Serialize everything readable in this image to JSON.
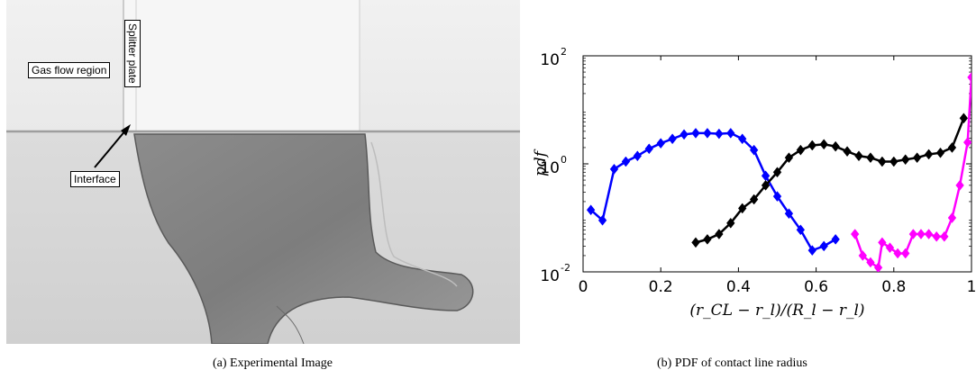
{
  "figure": {
    "panel_a": {
      "labels": {
        "gas_flow_region": "Gas flow region",
        "splitter_plate": "Splitter plate",
        "interface": "Interface"
      },
      "caption": "(a) Experimental Image"
    },
    "panel_b": {
      "caption": "(b) PDF of contact line radius"
    }
  },
  "chart_data": {
    "type": "line",
    "xlabel": "(r_CL − r_l)/(R_l − r_l)",
    "ylabel": "pdf",
    "xlim": [
      0,
      1
    ],
    "ylim": [
      0.01,
      100
    ],
    "yscale": "log",
    "grid": false,
    "legend": "none",
    "x_ticks": [
      "0",
      "0.2",
      "0.4",
      "0.6",
      "0.8",
      "1"
    ],
    "y_ticks": [
      {
        "base": "10",
        "exp": "-2"
      },
      {
        "base": "10",
        "exp": "0"
      },
      {
        "base": "10",
        "exp": "2"
      }
    ],
    "series": [
      {
        "color": "#0000ff",
        "marker": "diamond",
        "x": [
          0.02,
          0.05,
          0.08,
          0.11,
          0.14,
          0.17,
          0.2,
          0.23,
          0.26,
          0.29,
          0.32,
          0.35,
          0.38,
          0.41,
          0.44,
          0.47,
          0.5,
          0.53,
          0.56,
          0.59,
          0.62,
          0.65
        ],
        "y": [
          0.14,
          0.09,
          0.8,
          1.1,
          1.4,
          1.9,
          2.4,
          2.9,
          3.5,
          3.7,
          3.7,
          3.6,
          3.7,
          2.9,
          1.8,
          0.6,
          0.25,
          0.12,
          0.06,
          0.025,
          0.03,
          0.04
        ]
      },
      {
        "color": "#000000",
        "marker": "diamond",
        "x": [
          0.29,
          0.32,
          0.35,
          0.38,
          0.41,
          0.44,
          0.47,
          0.5,
          0.53,
          0.56,
          0.59,
          0.62,
          0.65,
          0.68,
          0.71,
          0.74,
          0.77,
          0.8,
          0.83,
          0.86,
          0.89,
          0.92,
          0.95,
          0.98
        ],
        "y": [
          0.035,
          0.04,
          0.05,
          0.08,
          0.15,
          0.22,
          0.4,
          0.7,
          1.3,
          1.8,
          2.2,
          2.3,
          2.1,
          1.7,
          1.4,
          1.3,
          1.1,
          1.1,
          1.2,
          1.3,
          1.5,
          1.6,
          2.0,
          7.0
        ]
      },
      {
        "color": "#ff00ff",
        "marker": "diamond",
        "x": [
          0.7,
          0.72,
          0.74,
          0.76,
          0.77,
          0.79,
          0.81,
          0.83,
          0.85,
          0.87,
          0.89,
          0.91,
          0.93,
          0.95,
          0.97,
          0.99,
          1.0
        ],
        "y": [
          0.05,
          0.02,
          0.015,
          0.012,
          0.035,
          0.028,
          0.022,
          0.022,
          0.05,
          0.05,
          0.05,
          0.045,
          0.045,
          0.1,
          0.4,
          2.5,
          40
        ]
      }
    ]
  }
}
